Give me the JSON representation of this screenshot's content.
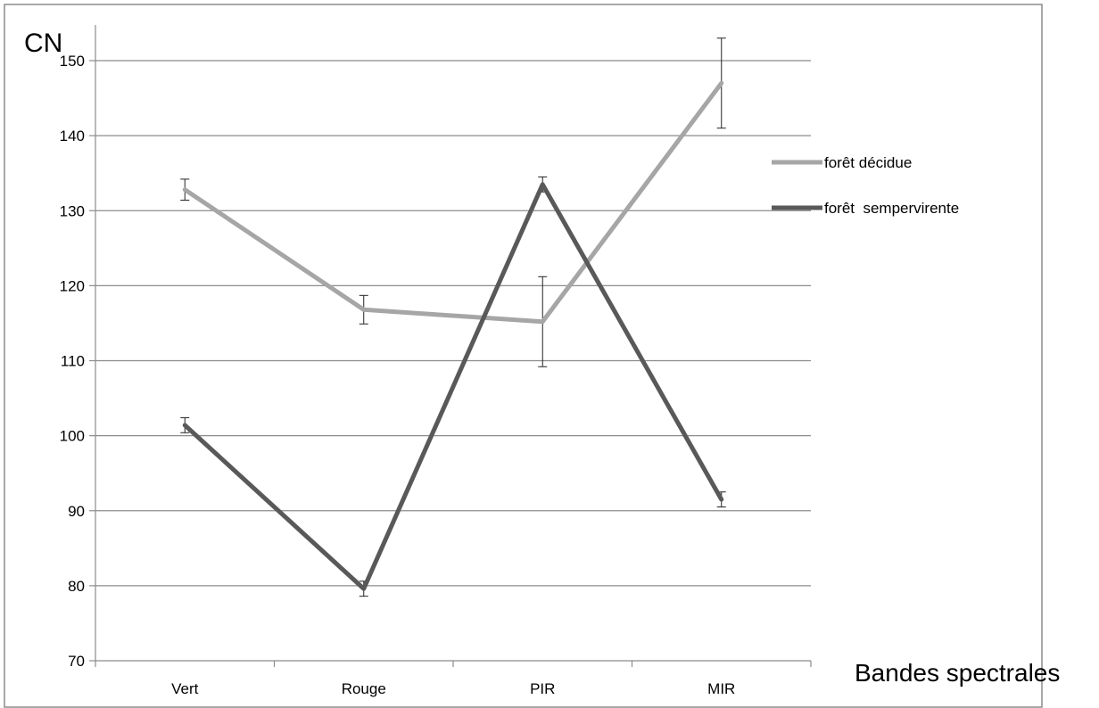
{
  "chart_data": {
    "type": "line",
    "categories": [
      "Vert",
      "Rouge",
      "PIR",
      "MIR"
    ],
    "ylabel": "CN",
    "xlabel": "Bandes spectrales",
    "ylim": [
      70,
      150
    ],
    "yticks": [
      70,
      80,
      90,
      100,
      110,
      120,
      130,
      140,
      150
    ],
    "grid": true,
    "legend_position": "right",
    "series": [
      {
        "name": "forêt décidue",
        "color": "#a6a6a6",
        "values": [
          132.8,
          116.8,
          115.2,
          147.0
        ],
        "error": [
          1.4,
          1.9,
          6.0,
          6.0
        ]
      },
      {
        "name": "forêt  sempervirente",
        "color": "#595959",
        "values": [
          101.4,
          79.6,
          133.5,
          91.5
        ],
        "error": [
          1.0,
          1.0,
          1.0,
          1.0
        ]
      }
    ]
  }
}
